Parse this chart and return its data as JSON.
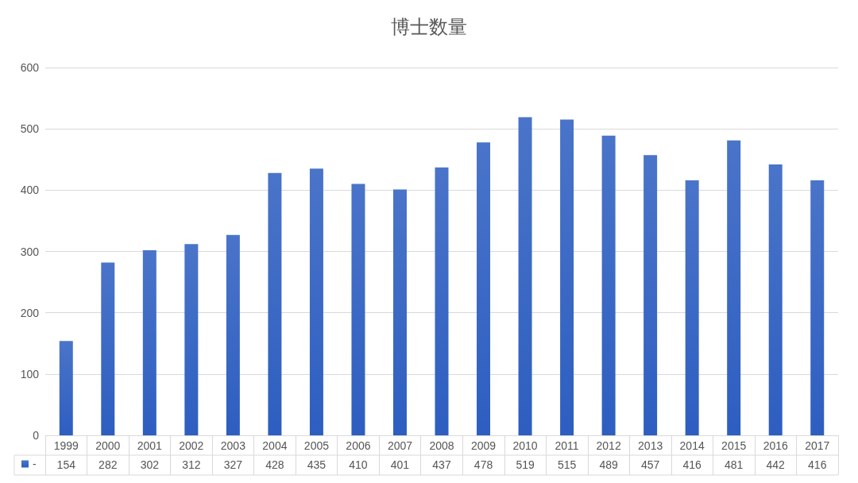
{
  "chart_data": {
    "type": "bar",
    "title": "博士数量",
    "categories": [
      "1999",
      "2000",
      "2001",
      "2002",
      "2003",
      "2004",
      "2005",
      "2006",
      "2007",
      "2008",
      "2009",
      "2010",
      "2011",
      "2012",
      "2013",
      "2014",
      "2015",
      "2016",
      "2017"
    ],
    "series": [
      {
        "name": "-",
        "color": "#4a74c9",
        "values": [
          154,
          282,
          302,
          312,
          327,
          428,
          435,
          410,
          401,
          437,
          478,
          519,
          515,
          489,
          457,
          416,
          481,
          442,
          416
        ]
      }
    ],
    "ylim": [
      0,
      600
    ],
    "yticks": [
      0,
      100,
      200,
      300,
      400,
      500,
      600
    ],
    "grid": "y",
    "legend": "bottom left",
    "data_labels": true
  }
}
